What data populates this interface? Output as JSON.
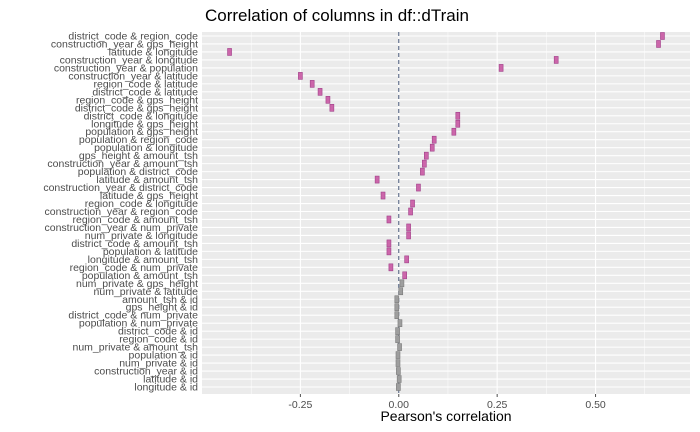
{
  "chart_data": {
    "type": "scatter",
    "title": "Correlation of columns in df::dTrain",
    "xlabel": "Pearson's correlation",
    "ylabel": "",
    "xlim": [
      -0.5,
      0.74
    ],
    "xticks": [
      -0.25,
      0.0,
      0.25,
      0.5
    ],
    "xtick_labels": [
      "-0.25",
      "0.00",
      "0.25",
      "0.50"
    ],
    "reference_line_x": 0,
    "grid": true,
    "background": "#ebebeb",
    "colors": {
      "positive": "#cc66aa",
      "small": "#9e9e9e",
      "reference": "#4a5a7a"
    },
    "categories": [
      "district_code & region_code",
      "construction_year & gps_height",
      "latitude & longitude",
      "construction_year & longitude",
      "construction_year & population",
      "construction_year & latitude",
      "region_code & latitude",
      "district_code & latitude",
      "region_code & gps_height",
      "district_code & gps_height",
      "district_code & longitude",
      "longitude & gps_height",
      "population & gps_height",
      "population & region_code",
      "population & longitude",
      "gps_height & amount_tsh",
      "construction_year & amount_tsh",
      "population & district_code",
      "latitude & amount_tsh",
      "construction_year & district_code",
      "latitude & gps_height",
      "region_code & longitude",
      "construction_year & region_code",
      "region_code & amount_tsh",
      "construction_year & num_private",
      "num_private & longitude",
      "district_code & amount_tsh",
      "population & latitude",
      "longitude & amount_tsh",
      "region_code & num_private",
      "population & amount_tsh",
      "num_private & gps_height",
      "num_private & latitude",
      "amount_tsh & id",
      "gps_height & id",
      "district_code & num_private",
      "population & num_private",
      "district_code & id",
      "region_code & id",
      "num_private & amount_tsh",
      "population & id",
      "num_private & id",
      "construction_year & id",
      "latitude & id",
      "longitude & id"
    ],
    "values": [
      0.67,
      0.66,
      -0.43,
      0.4,
      0.26,
      -0.25,
      -0.22,
      -0.2,
      -0.18,
      -0.17,
      0.15,
      0.15,
      0.14,
      0.09,
      0.085,
      0.07,
      0.065,
      0.06,
      -0.055,
      0.05,
      -0.04,
      0.035,
      0.03,
      -0.025,
      0.025,
      0.025,
      -0.025,
      -0.025,
      0.02,
      -0.02,
      0.015,
      0.008,
      0.005,
      -0.005,
      -0.005,
      -0.005,
      0.003,
      -0.003,
      -0.003,
      0.002,
      -0.002,
      -0.002,
      -0.001,
      0.001,
      -0.001
    ]
  }
}
